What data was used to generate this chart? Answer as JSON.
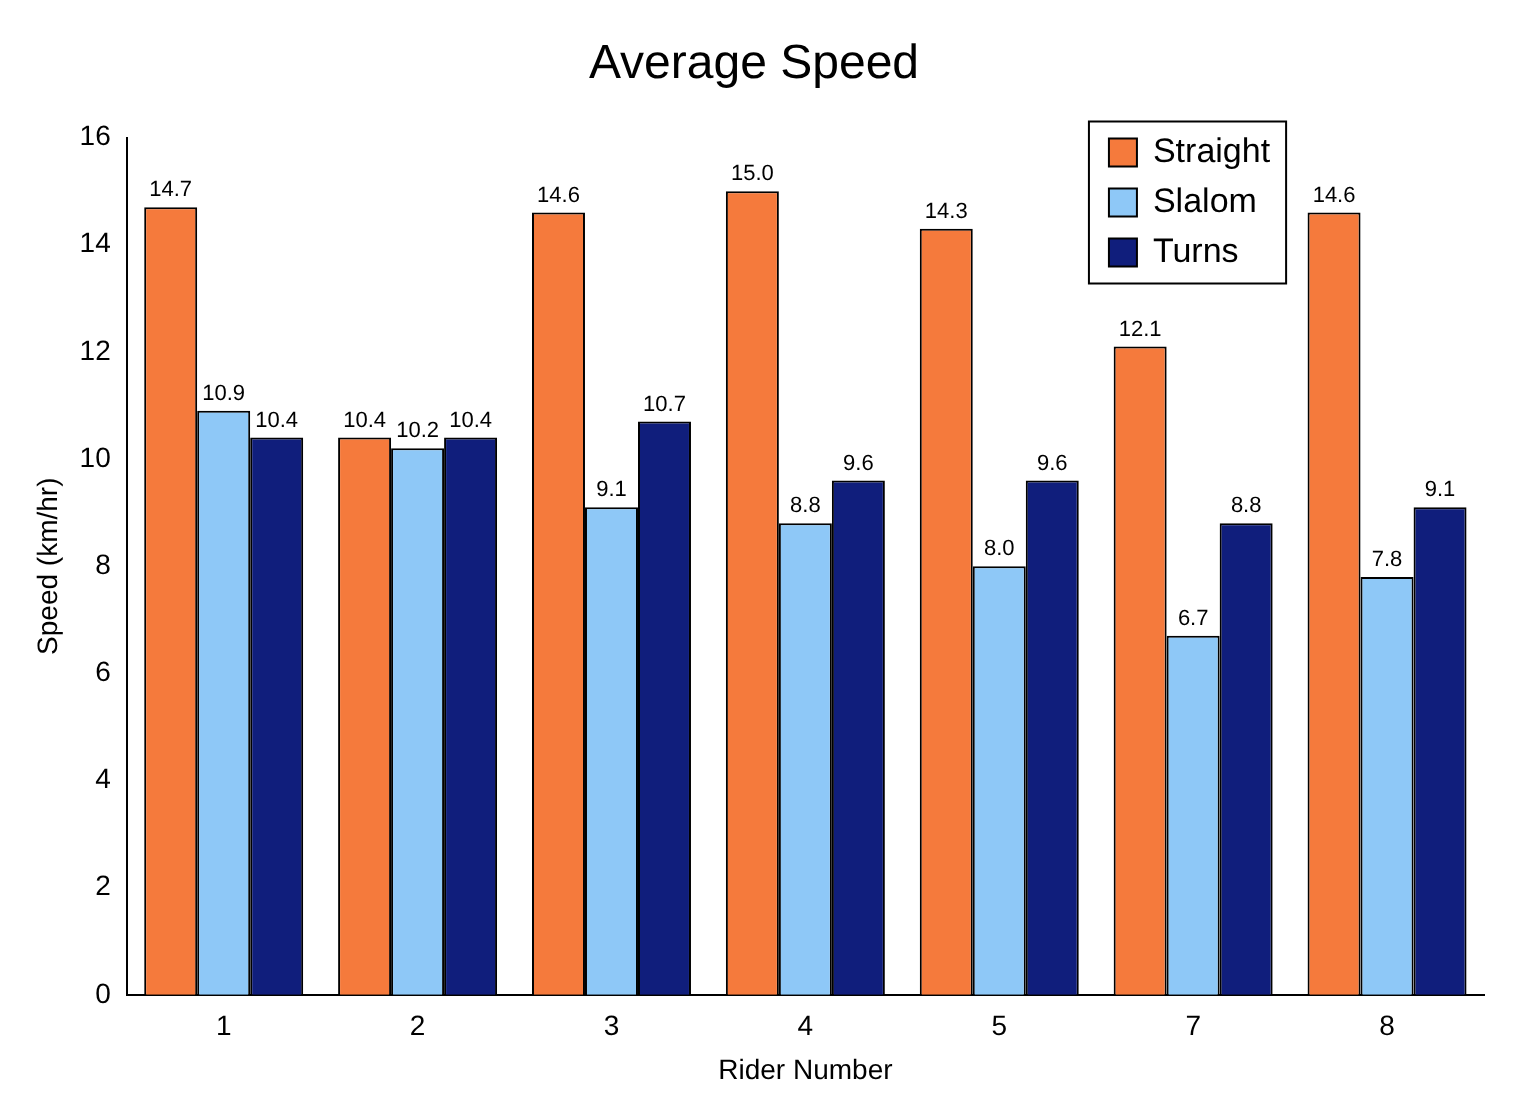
{
  "chart_data": {
    "type": "bar",
    "title": "Average Speed",
    "xlabel": "Rider Number",
    "ylabel": "Speed (km/hr)",
    "categories": [
      "1",
      "2",
      "3",
      "4",
      "5",
      "7",
      "8"
    ],
    "series": [
      {
        "name": "Straight",
        "color": "#f57a3c",
        "values": [
          14.7,
          10.4,
          14.6,
          15.0,
          14.3,
          12.1,
          14.6
        ],
        "value_labels": [
          "14.7",
          "10.4",
          "14.6",
          "15.0",
          "14.3",
          "12.1",
          "14.6"
        ]
      },
      {
        "name": "Slalom",
        "color": "#8ec8f7",
        "values": [
          10.9,
          10.2,
          9.1,
          8.8,
          8.0,
          6.7,
          7.8
        ],
        "value_labels": [
          "10.9",
          "10.2",
          "9.1",
          "8.8",
          "8.0",
          "6.7",
          "7.8"
        ]
      },
      {
        "name": "Turns",
        "color": "#101e7c",
        "values": [
          10.4,
          10.4,
          10.7,
          9.6,
          9.6,
          8.8,
          9.1
        ],
        "value_labels": [
          "10.4",
          "10.4",
          "10.7",
          "9.6",
          "9.6",
          "8.8",
          "9.1"
        ]
      }
    ],
    "ylim": [
      0,
      16
    ],
    "yticks": [
      0,
      2,
      4,
      6,
      8,
      10,
      12,
      14,
      16
    ],
    "grid": false,
    "legend": "top right"
  }
}
